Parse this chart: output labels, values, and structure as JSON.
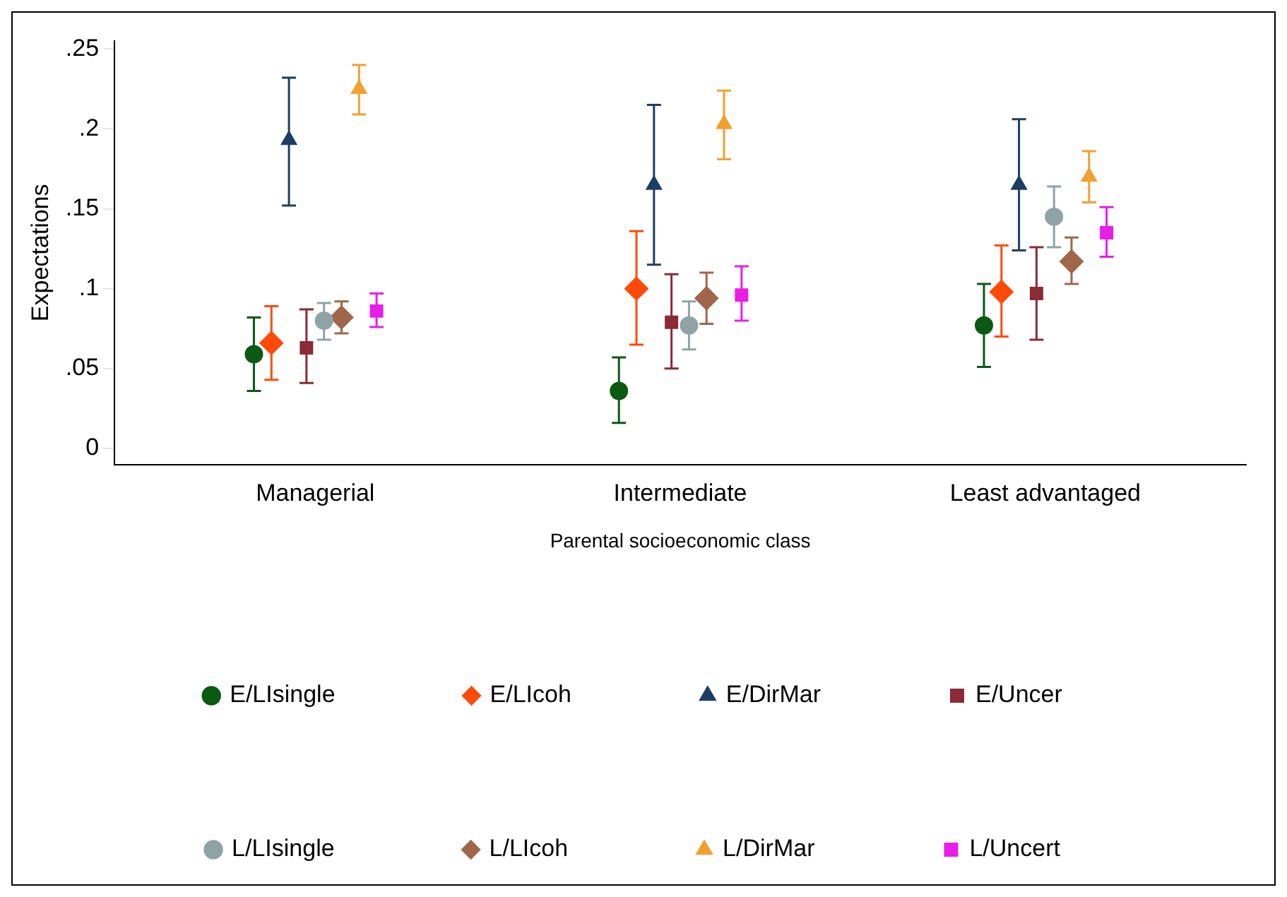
{
  "chart_data": {
    "type": "scatter",
    "xlabel": "Parental socioeconomic class",
    "ylabel": "Expectations",
    "categories": [
      "Managerial",
      "Intermediate",
      "Least advantaged"
    ],
    "ylim": [
      -0.01,
      0.255
    ],
    "yticks": [
      {
        "value": 0,
        "label": "0"
      },
      {
        "value": 0.05,
        "label": ".05"
      },
      {
        "value": 0.1,
        "label": ".1"
      },
      {
        "value": 0.15,
        "label": ".15"
      },
      {
        "value": 0.2,
        "label": ".2"
      },
      {
        "value": 0.25,
        "label": ".25"
      }
    ],
    "grid": false,
    "legend": "bottom",
    "series": [
      {
        "name": "E/LIsingle",
        "color": "#0b5a12",
        "marker": "circle",
        "values": [
          0.059,
          0.036,
          0.077
        ],
        "errors": [
          [
            0.036,
            0.082
          ],
          [
            0.016,
            0.057
          ],
          [
            0.051,
            0.103
          ]
        ]
      },
      {
        "name": "E/LIcoh",
        "color": "#ff4a0a",
        "marker": "diamond",
        "values": [
          0.066,
          0.1,
          0.098
        ],
        "errors": [
          [
            0.043,
            0.089
          ],
          [
            0.065,
            0.136
          ],
          [
            0.07,
            0.127
          ]
        ]
      },
      {
        "name": "E/DirMar",
        "color": "#1c3e66",
        "marker": "triangle",
        "values": [
          0.193,
          0.165,
          0.165
        ],
        "errors": [
          [
            0.152,
            0.232
          ],
          [
            0.115,
            0.215
          ],
          [
            0.124,
            0.206
          ]
        ]
      },
      {
        "name": "E/Uncer",
        "color": "#8c2a36",
        "marker": "square",
        "values": [
          0.063,
          0.079,
          0.097
        ],
        "errors": [
          [
            0.041,
            0.087
          ],
          [
            0.05,
            0.109
          ],
          [
            0.068,
            0.126
          ]
        ]
      },
      {
        "name": "L/LIsingle",
        "color": "#8fa3a6",
        "marker": "circle",
        "values": [
          0.08,
          0.077,
          0.145
        ],
        "errors": [
          [
            0.068,
            0.091
          ],
          [
            0.062,
            0.092
          ],
          [
            0.126,
            0.164
          ]
        ]
      },
      {
        "name": "L/LIcoh",
        "color": "#a0664a",
        "marker": "diamond",
        "values": [
          0.082,
          0.094,
          0.117
        ],
        "errors": [
          [
            0.072,
            0.092
          ],
          [
            0.078,
            0.11
          ],
          [
            0.103,
            0.132
          ]
        ]
      },
      {
        "name": "L/DirMar",
        "color": "#f0a030",
        "marker": "triangle",
        "values": [
          0.225,
          0.203,
          0.17
        ],
        "errors": [
          [
            0.209,
            0.24
          ],
          [
            0.181,
            0.224
          ],
          [
            0.154,
            0.186
          ]
        ]
      },
      {
        "name": "L/Uncert",
        "color": "#e81ee8",
        "marker": "square",
        "values": [
          0.086,
          0.096,
          0.135
        ],
        "errors": [
          [
            0.076,
            0.097
          ],
          [
            0.08,
            0.114
          ],
          [
            0.12,
            0.151
          ]
        ]
      }
    ]
  }
}
